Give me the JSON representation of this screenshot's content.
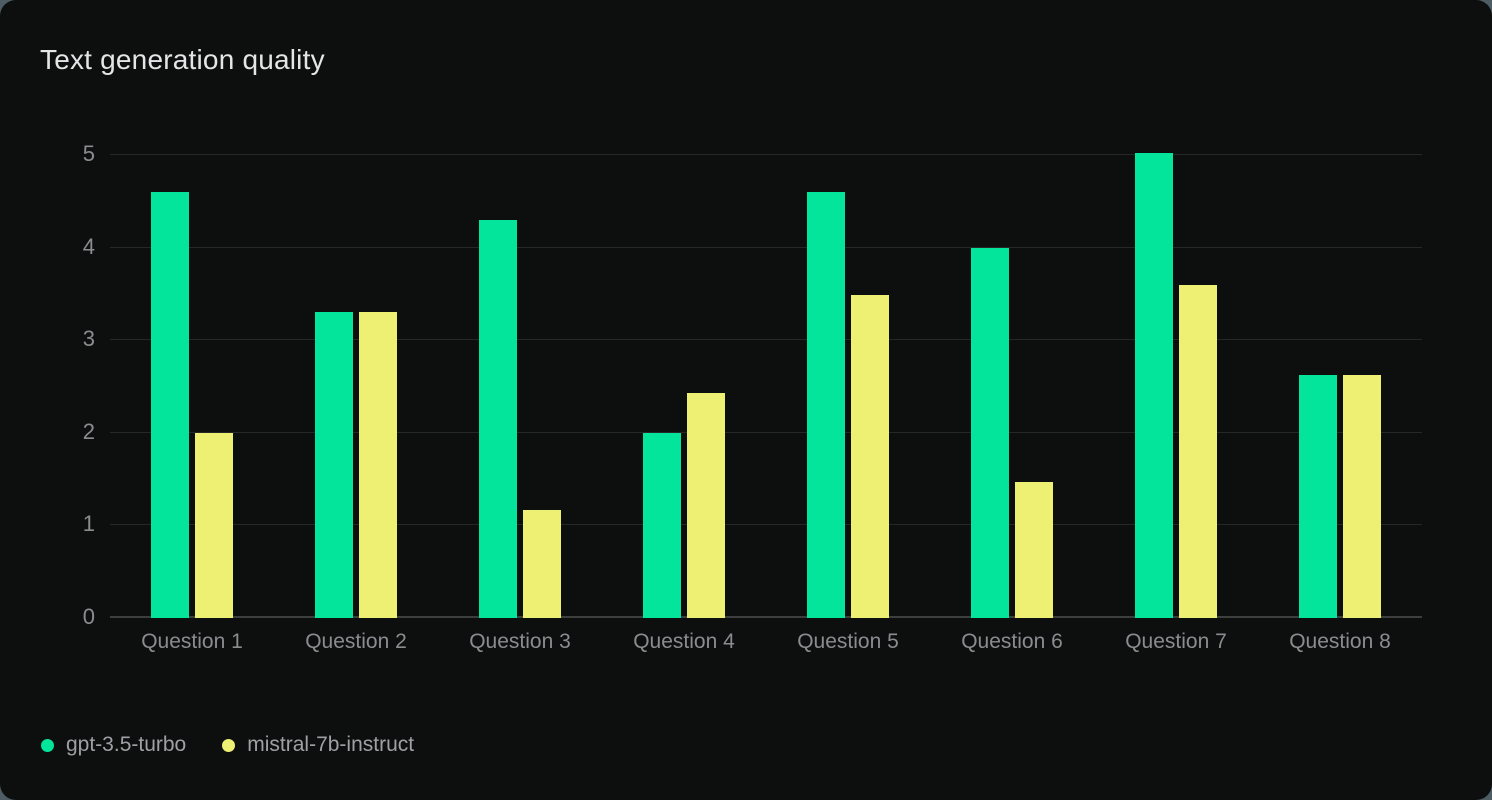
{
  "chart_data": {
    "type": "bar",
    "title": "Text generation quality",
    "categories": [
      "Question 1",
      "Question 2",
      "Question 3",
      "Question 4",
      "Question 5",
      "Question 6",
      "Question 7",
      "Question 8"
    ],
    "series": [
      {
        "name": "gpt-3.5-turbo",
        "color": "#02e59a",
        "values": [
          4.6,
          3.3,
          4.3,
          2.0,
          4.6,
          4.0,
          5.02,
          2.62
        ]
      },
      {
        "name": "mistral-7b-instruct",
        "color": "#eef073",
        "values": [
          2.0,
          3.3,
          1.17,
          2.43,
          3.49,
          1.47,
          3.6,
          2.62
        ]
      }
    ],
    "ylabel": "",
    "xlabel": "",
    "ylim": [
      0,
      5
    ],
    "yticks": [
      0,
      1,
      2,
      3,
      4,
      5
    ],
    "grid": "horizontal",
    "legend_position": "bottom-left",
    "colors": {
      "card_background": "#0d0f0e",
      "page_background": "#4e5d64",
      "gridline": "#262828",
      "zero_line": "#3d3f3f",
      "title_text": "#e4e5e6",
      "axis_text": "#8b8c90",
      "legend_text": "#9fa0a4"
    }
  }
}
